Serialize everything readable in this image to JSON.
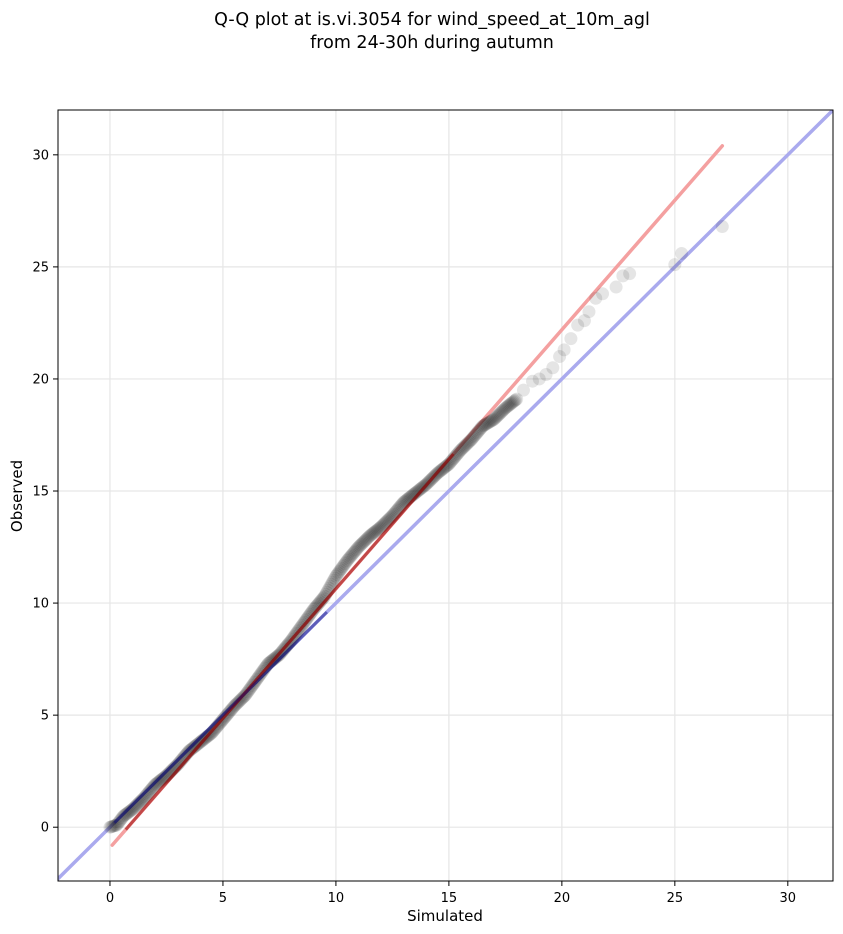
{
  "chart_data": {
    "type": "scatter",
    "title": "Q-Q plot at is.vi.3054 for wind_speed_at_10m_agl",
    "subtitle": "from 24-30h during autumn",
    "xlabel": "Simulated",
    "ylabel": "Observed",
    "xlim": [
      -2.3,
      32
    ],
    "ylim": [
      -2.4,
      32
    ],
    "xticks": [
      0,
      5,
      10,
      15,
      20,
      25,
      30
    ],
    "yticks": [
      0,
      5,
      10,
      15,
      20,
      25,
      30
    ],
    "grid": true,
    "colors": {
      "points": "#000000",
      "reference_line": "#aaaaee",
      "fit_line": "#f4a0a0",
      "fit_overlay": "#990000",
      "identity_overlay": "#000077"
    },
    "reference_line": {
      "name": "1:1",
      "slope": 1,
      "intercept": 0
    },
    "fit_line": {
      "x": [
        0.1,
        27.1
      ],
      "y": [
        -0.8,
        30.4
      ]
    },
    "quantiles": {
      "x": [
        0.0,
        0.3,
        0.6,
        1.0,
        1.5,
        2.0,
        2.5,
        3.0,
        3.5,
        4.0,
        4.5,
        5.0,
        5.5,
        6.0,
        6.5,
        7.0,
        7.5,
        8.0,
        8.5,
        9.0,
        9.5,
        10.0,
        10.5,
        11.0,
        11.5,
        12.0,
        12.5,
        13.0,
        13.5,
        14.0,
        14.5,
        15.0,
        15.5,
        16.0,
        16.5,
        17.0,
        17.5,
        18.0,
        18.3,
        18.7,
        19.0,
        19.3,
        19.6,
        19.9,
        20.1,
        20.4,
        20.7,
        21.0,
        21.2,
        21.5,
        21.8,
        22.4,
        22.7,
        23.0,
        25.0,
        25.3,
        27.1
      ],
      "y": [
        0.0,
        0.1,
        0.5,
        0.8,
        1.3,
        1.9,
        2.3,
        2.8,
        3.4,
        3.8,
        4.2,
        4.8,
        5.4,
        5.9,
        6.6,
        7.3,
        7.7,
        8.3,
        9.0,
        9.7,
        10.3,
        11.2,
        11.9,
        12.5,
        13.0,
        13.4,
        13.9,
        14.5,
        14.9,
        15.3,
        15.8,
        16.2,
        16.8,
        17.3,
        17.9,
        18.2,
        18.7,
        19.1,
        19.5,
        19.9,
        20.0,
        20.2,
        20.5,
        21.0,
        21.3,
        21.8,
        22.4,
        22.6,
        23.0,
        23.6,
        23.8,
        24.1,
        24.6,
        24.7,
        25.1,
        25.6,
        26.8
      ]
    }
  }
}
